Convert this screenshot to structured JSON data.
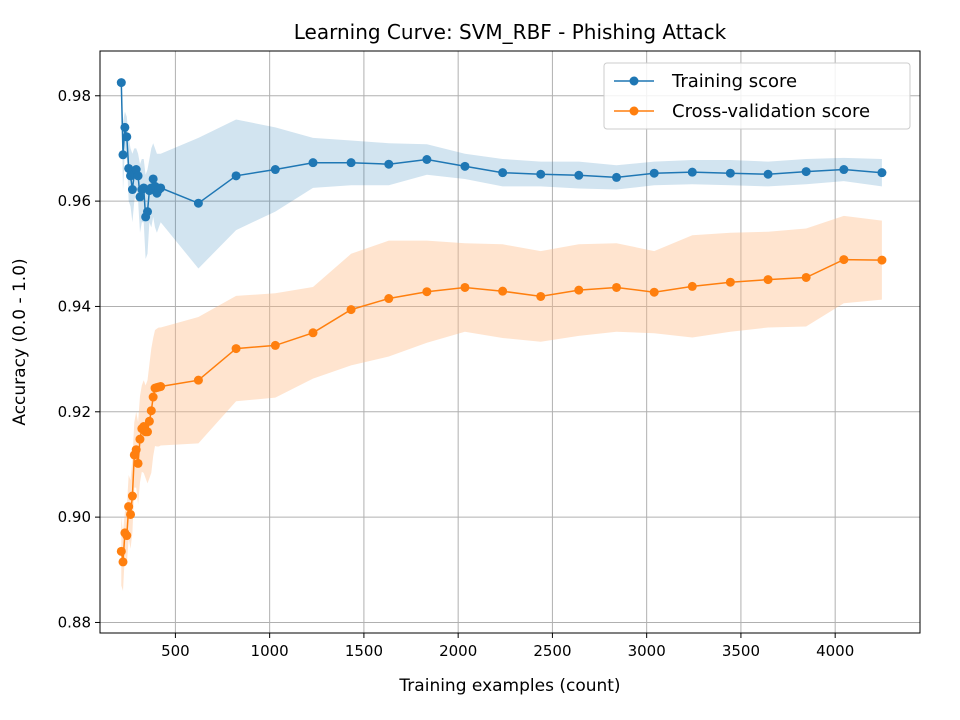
{
  "chart_data": {
    "type": "line",
    "title": "Learning Curve: SVM_RBF - Phishing Attack",
    "xlabel": "Training examples (count)",
    "ylabel": "Accuracy (0.0 - 1.0)",
    "xlim": [
      100,
      4450
    ],
    "ylim": [
      0.878,
      0.9885
    ],
    "xticks": [
      500,
      1000,
      1500,
      2000,
      2500,
      3000,
      3500,
      4000
    ],
    "yticks": [
      0.88,
      0.9,
      0.92,
      0.94,
      0.96,
      0.98
    ],
    "ytick_labels": [
      "0.88",
      "0.90",
      "0.92",
      "0.94",
      "0.96",
      "0.98"
    ],
    "grid": true,
    "legend_position": "top-right",
    "x": [
      213,
      222,
      232,
      242,
      252,
      262,
      272,
      282,
      292,
      302,
      312,
      322,
      332,
      342,
      352,
      362,
      372,
      382,
      392,
      402,
      412,
      422,
      622,
      822,
      1030,
      1230,
      1432,
      1632,
      1834,
      2036,
      2236,
      2438,
      2640,
      2840,
      3040,
      3242,
      3444,
      3644,
      3846,
      4046,
      4248
    ],
    "series": [
      {
        "name": "Training score",
        "color": "#1f77b4",
        "band_color": "#1f77b4",
        "values": [
          0.9825,
          0.9688,
          0.974,
          0.9722,
          0.9662,
          0.9648,
          0.9622,
          0.9652,
          0.966,
          0.9648,
          0.9608,
          0.9622,
          0.9625,
          0.957,
          0.958,
          0.962,
          0.9625,
          0.9642,
          0.9628,
          0.9615,
          0.9622,
          0.9625,
          0.9596,
          0.9648,
          0.966,
          0.9673,
          0.9673,
          0.967,
          0.9679,
          0.9666,
          0.9654,
          0.9651,
          0.9649,
          0.9645,
          0.9653,
          0.9655,
          0.9653,
          0.9651,
          0.9656,
          0.966,
          0.9654
        ],
        "upper": [
          0.983,
          0.975,
          0.977,
          0.976,
          0.972,
          0.97,
          0.969,
          0.97,
          0.97,
          0.969,
          0.967,
          0.968,
          0.968,
          0.965,
          0.966,
          0.968,
          0.97,
          0.971,
          0.97,
          0.969,
          0.969,
          0.969,
          0.972,
          0.9755,
          0.974,
          0.972,
          0.9715,
          0.971,
          0.9708,
          0.969,
          0.968,
          0.9675,
          0.9675,
          0.9668,
          0.9675,
          0.9678,
          0.9678,
          0.9675,
          0.968,
          0.9682,
          0.968
        ],
        "lower": [
          0.982,
          0.962,
          0.97,
          0.968,
          0.96,
          0.959,
          0.956,
          0.96,
          0.962,
          0.96,
          0.954,
          0.956,
          0.956,
          0.949,
          0.95,
          0.956,
          0.955,
          0.957,
          0.955,
          0.954,
          0.955,
          0.956,
          0.9472,
          0.9545,
          0.958,
          0.9625,
          0.963,
          0.963,
          0.965,
          0.9642,
          0.9628,
          0.9628,
          0.9624,
          0.9622,
          0.963,
          0.9632,
          0.963,
          0.9628,
          0.9632,
          0.9638,
          0.9628
        ]
      },
      {
        "name": "Cross-validation score",
        "color": "#ff7f0e",
        "band_color": "#ffbb88",
        "values": [
          0.8935,
          0.8915,
          0.897,
          0.8965,
          0.902,
          0.9005,
          0.904,
          0.9118,
          0.9128,
          0.9102,
          0.9148,
          0.9168,
          0.9172,
          0.9162,
          0.9162,
          0.9182,
          0.9202,
          0.9228,
          0.9245,
          0.9246,
          0.9247,
          0.9248,
          0.926,
          0.932,
          0.9326,
          0.935,
          0.9394,
          0.9415,
          0.9428,
          0.9436,
          0.9429,
          0.9419,
          0.9431,
          0.9436,
          0.9427,
          0.9438,
          0.9446,
          0.9451,
          0.9455,
          0.9489,
          0.9488
        ],
        "upper": [
          0.9,
          0.897,
          0.901,
          0.902,
          0.908,
          0.907,
          0.911,
          0.918,
          0.92,
          0.918,
          0.923,
          0.925,
          0.926,
          0.925,
          0.926,
          0.929,
          0.932,
          0.934,
          0.9355,
          0.9358,
          0.936,
          0.936,
          0.938,
          0.942,
          0.9425,
          0.9437,
          0.95,
          0.9525,
          0.9525,
          0.952,
          0.9518,
          0.9505,
          0.9518,
          0.952,
          0.9505,
          0.9535,
          0.954,
          0.9542,
          0.9548,
          0.9572,
          0.9563
        ],
        "lower": [
          0.887,
          0.886,
          0.893,
          0.891,
          0.896,
          0.894,
          0.897,
          0.9056,
          0.9056,
          0.9024,
          0.9066,
          0.9086,
          0.9084,
          0.9074,
          0.9064,
          0.9074,
          0.9084,
          0.9116,
          0.9135,
          0.9134,
          0.9134,
          0.9136,
          0.914,
          0.922,
          0.9227,
          0.9263,
          0.9288,
          0.9305,
          0.9331,
          0.9352,
          0.934,
          0.9333,
          0.9344,
          0.9352,
          0.9349,
          0.9341,
          0.9352,
          0.936,
          0.9362,
          0.9406,
          0.9413
        ]
      }
    ]
  }
}
